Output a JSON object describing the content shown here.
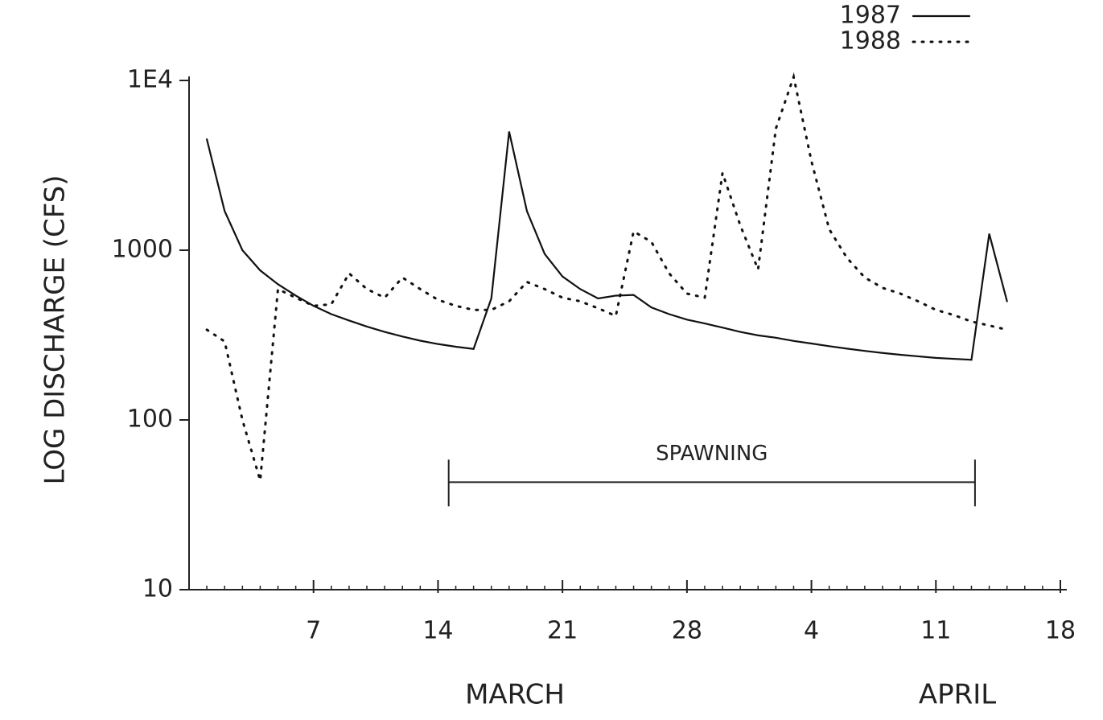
{
  "chart_data": {
    "type": "line",
    "y_label": "LOG DISCHARGE (CFS)",
    "annotations": [
      "MARCH",
      "APRIL"
    ],
    "spawning": {
      "label": "SPAWNING",
      "start": 14.6,
      "end": 44.2,
      "level": 43
    },
    "log_y": true,
    "legend": "top-right",
    "x": [
      1,
      2,
      3,
      4,
      5,
      6,
      7,
      8,
      9,
      10,
      11,
      12,
      13,
      14,
      15,
      16,
      17,
      18,
      19,
      20,
      21,
      22,
      23,
      24,
      25,
      26,
      27,
      28,
      29,
      30,
      31,
      32,
      33,
      34,
      35,
      36,
      37,
      38,
      39,
      40,
      41,
      42,
      43,
      44,
      45,
      46
    ],
    "series": [
      {
        "name": "1987",
        "color": "#111111",
        "line_style": "solid",
        "values": [
          4500,
          1700,
          1000,
          760,
          630,
          540,
          470,
          420,
          385,
          355,
          330,
          310,
          293,
          280,
          270,
          262,
          520,
          5000,
          1700,
          950,
          700,
          590,
          520,
          540,
          545,
          460,
          420,
          390,
          370,
          350,
          330,
          315,
          305,
          292,
          282,
          272,
          263,
          255,
          248,
          242,
          237,
          232,
          229,
          226,
          1250,
          500
        ]
      },
      {
        "name": "1988",
        "color": "#111111",
        "line_style": "dotted",
        "values": [
          340,
          290,
          100,
          44,
          590,
          525,
          470,
          480,
          730,
          590,
          525,
          690,
          590,
          510,
          470,
          445,
          445,
          500,
          650,
          590,
          525,
          500,
          455,
          410,
          1290,
          1120,
          730,
          555,
          525,
          2850,
          1400,
          770,
          5200,
          10500,
          3350,
          1330,
          900,
          690,
          600,
          555,
          500,
          445,
          415,
          380,
          360,
          340
        ]
      }
    ],
    "xlim": [
      0,
      49
    ],
    "xticks": [
      7,
      14,
      21,
      28,
      {
        "value": 35,
        "label": "4"
      },
      {
        "value": 42,
        "label": "11"
      },
      {
        "value": 49,
        "label": "18"
      }
    ],
    "ylim": [
      10,
      10000
    ],
    "yticks": [
      10,
      100,
      1000,
      {
        "value": 10000,
        "label": "1E4"
      }
    ]
  }
}
